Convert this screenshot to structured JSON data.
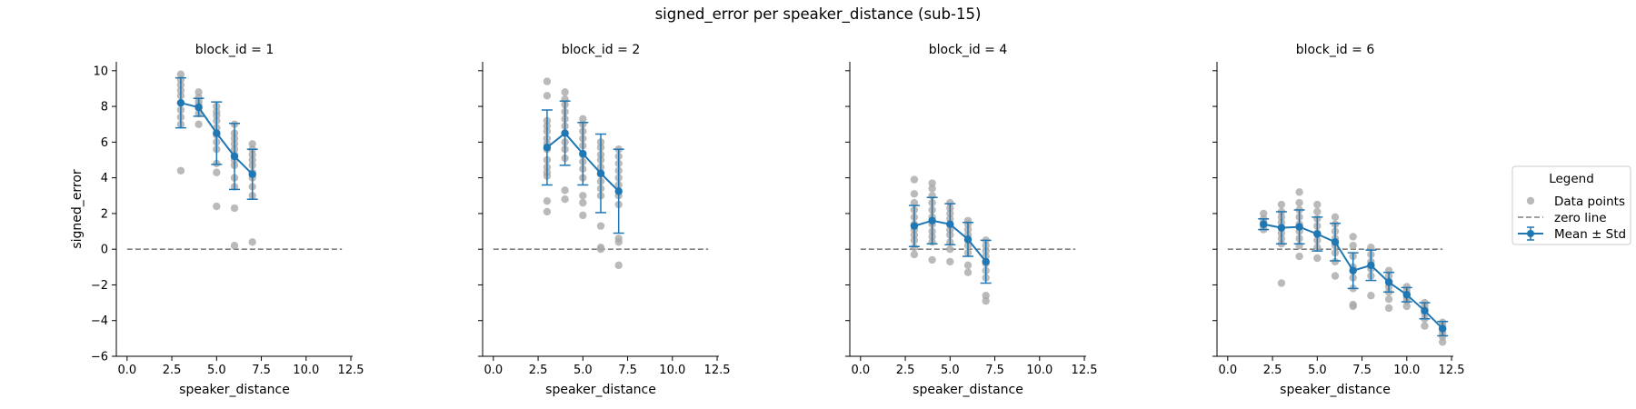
{
  "chart_data": {
    "type": "scatter",
    "title": "signed_error per speaker_distance (sub-15)",
    "xlabel": "speaker_distance",
    "ylabel": "signed_error",
    "xlim": [
      -0.6,
      12.6
    ],
    "ylim": [
      -6,
      10.5
    ],
    "xticks": [
      "0.0",
      "2.5",
      "5.0",
      "7.5",
      "10.0",
      "12.5"
    ],
    "yticks": [
      "−6",
      "−4",
      "−2",
      "0",
      "2",
      "4",
      "6",
      "8",
      "10"
    ],
    "colors": {
      "points": "#a9a9a9",
      "mean": "#1f77b4",
      "zero": "#808080"
    },
    "zero_line": {
      "y": 0,
      "x_range": [
        0,
        12
      ]
    },
    "legend": {
      "title": "Legend",
      "position": "right",
      "entries": [
        "Data points",
        "zero line",
        "Mean ± Std"
      ]
    },
    "panels": [
      {
        "title": "block_id = 1",
        "points": [
          [
            3,
            9.8
          ],
          [
            3,
            9.5
          ],
          [
            3,
            9.2
          ],
          [
            3,
            8.9
          ],
          [
            3,
            8.6
          ],
          [
            3,
            8.2
          ],
          [
            3,
            7.8
          ],
          [
            3,
            7.4
          ],
          [
            3,
            7.0
          ],
          [
            3,
            4.4
          ],
          [
            4,
            8.8
          ],
          [
            4,
            8.5
          ],
          [
            4,
            8.3
          ],
          [
            4,
            8.1
          ],
          [
            4,
            7.9
          ],
          [
            4,
            7.6
          ],
          [
            4,
            7.0
          ],
          [
            5,
            8.0
          ],
          [
            5,
            7.7
          ],
          [
            5,
            7.5
          ],
          [
            5,
            7.2
          ],
          [
            5,
            6.8
          ],
          [
            5,
            6.4
          ],
          [
            5,
            6.0
          ],
          [
            5,
            5.6
          ],
          [
            5,
            4.8
          ],
          [
            5,
            4.3
          ],
          [
            5,
            2.4
          ],
          [
            6,
            7.0
          ],
          [
            6,
            6.5
          ],
          [
            6,
            6.2
          ],
          [
            6,
            5.9
          ],
          [
            6,
            5.6
          ],
          [
            6,
            5.3
          ],
          [
            6,
            5.0
          ],
          [
            6,
            4.7
          ],
          [
            6,
            4.0
          ],
          [
            6,
            3.5
          ],
          [
            6,
            2.3
          ],
          [
            6,
            0.2
          ],
          [
            7,
            5.9
          ],
          [
            7,
            5.6
          ],
          [
            7,
            5.3
          ],
          [
            7,
            5.0
          ],
          [
            7,
            4.7
          ],
          [
            7,
            4.3
          ],
          [
            7,
            4.0
          ],
          [
            7,
            3.5
          ],
          [
            7,
            3.0
          ],
          [
            7,
            0.4
          ]
        ],
        "mean": [
          {
            "x": 3,
            "y": 8.2,
            "std": 1.4
          },
          {
            "x": 4,
            "y": 7.95,
            "std": 0.5
          },
          {
            "x": 5,
            "y": 6.5,
            "std": 1.75
          },
          {
            "x": 6,
            "y": 5.2,
            "std": 1.85
          },
          {
            "x": 7,
            "y": 4.2,
            "std": 1.4
          }
        ]
      },
      {
        "title": "block_id = 2",
        "points": [
          [
            3,
            9.4
          ],
          [
            3,
            8.6
          ],
          [
            3,
            7.2
          ],
          [
            3,
            6.9
          ],
          [
            3,
            6.6
          ],
          [
            3,
            6.2
          ],
          [
            3,
            5.9
          ],
          [
            3,
            5.6
          ],
          [
            3,
            5.0
          ],
          [
            3,
            4.6
          ],
          [
            3,
            4.3
          ],
          [
            3,
            4.1
          ],
          [
            3,
            2.7
          ],
          [
            3,
            2.1
          ],
          [
            4,
            8.8
          ],
          [
            4,
            8.4
          ],
          [
            4,
            8.1
          ],
          [
            4,
            7.7
          ],
          [
            4,
            7.3
          ],
          [
            4,
            6.9
          ],
          [
            4,
            6.5
          ],
          [
            4,
            6.0
          ],
          [
            4,
            5.6
          ],
          [
            4,
            5.1
          ],
          [
            4,
            3.3
          ],
          [
            4,
            2.8
          ],
          [
            5,
            7.3
          ],
          [
            5,
            7.0
          ],
          [
            5,
            6.6
          ],
          [
            5,
            6.2
          ],
          [
            5,
            5.8
          ],
          [
            5,
            5.3
          ],
          [
            5,
            4.9
          ],
          [
            5,
            4.5
          ],
          [
            5,
            4.0
          ],
          [
            5,
            3.0
          ],
          [
            5,
            2.6
          ],
          [
            5,
            1.9
          ],
          [
            6,
            6.0
          ],
          [
            6,
            5.7
          ],
          [
            6,
            5.3
          ],
          [
            6,
            5.0
          ],
          [
            6,
            4.6
          ],
          [
            6,
            4.2
          ],
          [
            6,
            3.8
          ],
          [
            6,
            3.4
          ],
          [
            6,
            3.0
          ],
          [
            6,
            1.3
          ],
          [
            6,
            0.1
          ],
          [
            6,
            0.0
          ],
          [
            7,
            5.6
          ],
          [
            7,
            5.2
          ],
          [
            7,
            4.8
          ],
          [
            7,
            4.4
          ],
          [
            7,
            4.0
          ],
          [
            7,
            3.6
          ],
          [
            7,
            3.0
          ],
          [
            7,
            2.5
          ],
          [
            7,
            0.6
          ],
          [
            7,
            0.4
          ],
          [
            7,
            -0.9
          ]
        ],
        "mean": [
          {
            "x": 3,
            "y": 5.7,
            "std": 2.1
          },
          {
            "x": 4,
            "y": 6.5,
            "std": 1.8
          },
          {
            "x": 5,
            "y": 5.35,
            "std": 1.75
          },
          {
            "x": 6,
            "y": 4.25,
            "std": 2.2
          },
          {
            "x": 7,
            "y": 3.25,
            "std": 2.35
          }
        ]
      },
      {
        "title": "block_id = 4",
        "points": [
          [
            3,
            3.9
          ],
          [
            3,
            3.1
          ],
          [
            3,
            2.6
          ],
          [
            3,
            2.2
          ],
          [
            3,
            1.8
          ],
          [
            3,
            1.4
          ],
          [
            3,
            1.1
          ],
          [
            3,
            0.8
          ],
          [
            3,
            0.5
          ],
          [
            3,
            0.1
          ],
          [
            3,
            -0.3
          ],
          [
            4,
            3.7
          ],
          [
            4,
            3.4
          ],
          [
            4,
            3.0
          ],
          [
            4,
            2.6
          ],
          [
            4,
            2.2
          ],
          [
            4,
            1.8
          ],
          [
            4,
            1.4
          ],
          [
            4,
            1.0
          ],
          [
            4,
            0.7
          ],
          [
            4,
            0.4
          ],
          [
            4,
            -0.6
          ],
          [
            5,
            2.6
          ],
          [
            5,
            2.3
          ],
          [
            5,
            2.0
          ],
          [
            5,
            1.7
          ],
          [
            5,
            1.4
          ],
          [
            5,
            1.1
          ],
          [
            5,
            0.8
          ],
          [
            5,
            0.4
          ],
          [
            5,
            0.0
          ],
          [
            5,
            -0.7
          ],
          [
            6,
            1.6
          ],
          [
            6,
            1.4
          ],
          [
            6,
            1.1
          ],
          [
            6,
            0.8
          ],
          [
            6,
            0.5
          ],
          [
            6,
            0.2
          ],
          [
            6,
            -0.2
          ],
          [
            6,
            -0.9
          ],
          [
            6,
            -1.3
          ],
          [
            7,
            0.5
          ],
          [
            7,
            0.2
          ],
          [
            7,
            -0.1
          ],
          [
            7,
            -0.4
          ],
          [
            7,
            -0.8
          ],
          [
            7,
            -1.2
          ],
          [
            7,
            -1.6
          ],
          [
            7,
            -2.6
          ],
          [
            7,
            -2.9
          ]
        ],
        "mean": [
          {
            "x": 3,
            "y": 1.3,
            "std": 1.15
          },
          {
            "x": 4,
            "y": 1.6,
            "std": 1.3
          },
          {
            "x": 5,
            "y": 1.4,
            "std": 1.15
          },
          {
            "x": 6,
            "y": 0.55,
            "std": 0.95
          },
          {
            "x": 7,
            "y": -0.7,
            "std": 1.2
          }
        ]
      },
      {
        "title": "block_id = 6",
        "points": [
          [
            2,
            2.0
          ],
          [
            2,
            1.7
          ],
          [
            2,
            1.5
          ],
          [
            2,
            1.3
          ],
          [
            2,
            1.1
          ],
          [
            3,
            2.5
          ],
          [
            3,
            2.1
          ],
          [
            3,
            1.8
          ],
          [
            3,
            1.5
          ],
          [
            3,
            1.2
          ],
          [
            3,
            0.9
          ],
          [
            3,
            0.6
          ],
          [
            3,
            0.3
          ],
          [
            3,
            -1.9
          ],
          [
            4,
            3.2
          ],
          [
            4,
            2.6
          ],
          [
            4,
            2.2
          ],
          [
            4,
            1.8
          ],
          [
            4,
            1.4
          ],
          [
            4,
            1.0
          ],
          [
            4,
            0.6
          ],
          [
            4,
            0.2
          ],
          [
            4,
            -0.4
          ],
          [
            5,
            2.5
          ],
          [
            5,
            2.1
          ],
          [
            5,
            1.7
          ],
          [
            5,
            1.3
          ],
          [
            5,
            0.9
          ],
          [
            5,
            0.5
          ],
          [
            5,
            0.1
          ],
          [
            5,
            -0.5
          ],
          [
            6,
            1.8
          ],
          [
            6,
            1.4
          ],
          [
            6,
            1.0
          ],
          [
            6,
            0.6
          ],
          [
            6,
            0.2
          ],
          [
            6,
            -0.2
          ],
          [
            6,
            -0.7
          ],
          [
            6,
            -1.5
          ],
          [
            7,
            0.7
          ],
          [
            7,
            0.2
          ],
          [
            7,
            -0.4
          ],
          [
            7,
            -1.0
          ],
          [
            7,
            -1.6
          ],
          [
            7,
            -2.2
          ],
          [
            7,
            -3.1
          ],
          [
            7,
            -3.2
          ],
          [
            8,
            0.1
          ],
          [
            8,
            -0.3
          ],
          [
            8,
            -0.7
          ],
          [
            8,
            -1.1
          ],
          [
            8,
            -1.5
          ],
          [
            8,
            -2.6
          ],
          [
            9,
            -1.2
          ],
          [
            9,
            -1.5
          ],
          [
            9,
            -1.8
          ],
          [
            9,
            -2.1
          ],
          [
            9,
            -2.4
          ],
          [
            9,
            -2.8
          ],
          [
            9,
            -3.3
          ],
          [
            10,
            -2.1
          ],
          [
            10,
            -2.3
          ],
          [
            10,
            -2.5
          ],
          [
            10,
            -2.7
          ],
          [
            10,
            -2.9
          ],
          [
            10,
            -3.2
          ],
          [
            11,
            -3.0
          ],
          [
            11,
            -3.2
          ],
          [
            11,
            -3.4
          ],
          [
            11,
            -3.6
          ],
          [
            11,
            -3.9
          ],
          [
            11,
            -4.3
          ],
          [
            12,
            -4.1
          ],
          [
            12,
            -4.3
          ],
          [
            12,
            -4.5
          ],
          [
            12,
            -4.7
          ],
          [
            12,
            -4.9
          ],
          [
            12,
            -5.2
          ]
        ],
        "mean": [
          {
            "x": 2,
            "y": 1.4,
            "std": 0.3
          },
          {
            "x": 3,
            "y": 1.2,
            "std": 0.9
          },
          {
            "x": 4,
            "y": 1.25,
            "std": 0.95
          },
          {
            "x": 5,
            "y": 0.85,
            "std": 0.95
          },
          {
            "x": 6,
            "y": 0.4,
            "std": 1.05
          },
          {
            "x": 7,
            "y": -1.2,
            "std": 1.0
          },
          {
            "x": 8,
            "y": -0.9,
            "std": 0.85
          },
          {
            "x": 9,
            "y": -1.85,
            "std": 0.55
          },
          {
            "x": 10,
            "y": -2.55,
            "std": 0.4
          },
          {
            "x": 11,
            "y": -3.45,
            "std": 0.45
          },
          {
            "x": 12,
            "y": -4.45,
            "std": 0.4
          }
        ]
      }
    ]
  }
}
